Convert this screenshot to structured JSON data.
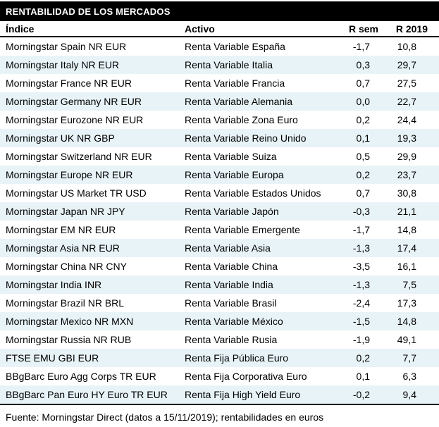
{
  "table": {
    "title": "RENTABILIDAD DE LOS MERCADOS",
    "columns": [
      "Índice",
      "Activo",
      "R sem",
      "R 2019"
    ],
    "rows": [
      {
        "indice": "Morningstar Spain NR EUR",
        "activo": "Renta Variable España",
        "r_sem": "-1,7",
        "r_2019": "10,8"
      },
      {
        "indice": "Morningstar Italy NR EUR",
        "activo": "Renta Variable Italia",
        "r_sem": "0,3",
        "r_2019": "29,7"
      },
      {
        "indice": "Morningstar France NR EUR",
        "activo": "Renta Variable Francia",
        "r_sem": "0,7",
        "r_2019": "27,5"
      },
      {
        "indice": "Morningstar Germany NR EUR",
        "activo": "Renta Variable Alemania",
        "r_sem": "0,0",
        "r_2019": "22,7"
      },
      {
        "indice": "Morningstar Eurozone NR EUR",
        "activo": "Renta Variable Zona Euro",
        "r_sem": "0,2",
        "r_2019": "24,4"
      },
      {
        "indice": "Morningstar UK NR GBP",
        "activo": "Renta Variable Reino Unido",
        "r_sem": "0,1",
        "r_2019": "19,3"
      },
      {
        "indice": "Morningstar Switzerland NR EUR",
        "activo": "Renta Variable Suiza",
        "r_sem": "0,5",
        "r_2019": "29,9"
      },
      {
        "indice": "Morningstar Europe NR EUR",
        "activo": "Renta Variable Europa",
        "r_sem": "0,2",
        "r_2019": "23,7"
      },
      {
        "indice": "Morningstar US Market TR USD",
        "activo": "Renta Variable Estados Unidos",
        "r_sem": "0,7",
        "r_2019": "30,8"
      },
      {
        "indice": "Morningstar Japan NR JPY",
        "activo": "Renta Variable Japón",
        "r_sem": "-0,3",
        "r_2019": "21,1"
      },
      {
        "indice": "Morningstar EM NR EUR",
        "activo": "Renta Variable Emergente",
        "r_sem": "-1,7",
        "r_2019": "14,8"
      },
      {
        "indice": "Morningstar Asia NR EUR",
        "activo": "Renta Variable Asia",
        "r_sem": "-1,3",
        "r_2019": "17,4"
      },
      {
        "indice": "Morningstar China NR CNY",
        "activo": "Renta Variable China",
        "r_sem": "-3,5",
        "r_2019": "16,1"
      },
      {
        "indice": "Morningstar India INR",
        "activo": "Renta Variable India",
        "r_sem": "-1,3",
        "r_2019": "7,5"
      },
      {
        "indice": "Morningstar Brazil NR BRL",
        "activo": "Renta Variable Brasil",
        "r_sem": "-2,4",
        "r_2019": "17,3"
      },
      {
        "indice": "Morningstar Mexico NR MXN",
        "activo": "Renta Variable México",
        "r_sem": "-1,5",
        "r_2019": "14,8"
      },
      {
        "indice": "Morningstar Russia NR RUB",
        "activo": "Renta Variable Rusia",
        "r_sem": "-1,9",
        "r_2019": "49,1"
      },
      {
        "indice": "FTSE EMU GBI EUR",
        "activo": "Renta Fija Pública Euro",
        "r_sem": "0,2",
        "r_2019": "7,7"
      },
      {
        "indice": "BBgBarc Euro Agg Corps TR EUR",
        "activo": "Renta Fija Corporativa Euro",
        "r_sem": "0,1",
        "r_2019": "6,3"
      },
      {
        "indice": "BBgBarc Pan Euro HY Euro TR EUR",
        "activo": "Renta Fija High Yield Euro",
        "r_sem": "-0,2",
        "r_2019": "9,4"
      }
    ]
  },
  "footer": {
    "source": "Fuente: Morningstar Direct (datos a 15/11/2019); rentabilidades en euros"
  },
  "colors": {
    "title_bg": "#000000",
    "title_text": "#ffffff",
    "stripe": "#e8f3f8",
    "text": "#000000",
    "rule": "#000000"
  },
  "chart_data": {
    "type": "table",
    "title": "RENTABILIDAD DE LOS MERCADOS",
    "columns": [
      "Índice",
      "Activo",
      "R sem",
      "R 2019"
    ],
    "rows": [
      [
        "Morningstar Spain NR EUR",
        "Renta Variable España",
        -1.7,
        10.8
      ],
      [
        "Morningstar Italy NR EUR",
        "Renta Variable Italia",
        0.3,
        29.7
      ],
      [
        "Morningstar France NR EUR",
        "Renta Variable Francia",
        0.7,
        27.5
      ],
      [
        "Morningstar Germany NR EUR",
        "Renta Variable Alemania",
        0.0,
        22.7
      ],
      [
        "Morningstar Eurozone NR EUR",
        "Renta Variable Zona Euro",
        0.2,
        24.4
      ],
      [
        "Morningstar UK NR GBP",
        "Renta Variable Reino Unido",
        0.1,
        19.3
      ],
      [
        "Morningstar Switzerland NR EUR",
        "Renta Variable Suiza",
        0.5,
        29.9
      ],
      [
        "Morningstar Europe NR EUR",
        "Renta Variable Europa",
        0.2,
        23.7
      ],
      [
        "Morningstar US Market TR USD",
        "Renta Variable Estados Unidos",
        0.7,
        30.8
      ],
      [
        "Morningstar Japan NR JPY",
        "Renta Variable Japón",
        -0.3,
        21.1
      ],
      [
        "Morningstar EM NR EUR",
        "Renta Variable Emergente",
        -1.7,
        14.8
      ],
      [
        "Morningstar Asia NR EUR",
        "Renta Variable Asia",
        -1.3,
        17.4
      ],
      [
        "Morningstar China NR CNY",
        "Renta Variable China",
        -3.5,
        16.1
      ],
      [
        "Morningstar India INR",
        "Renta Variable India",
        -1.3,
        7.5
      ],
      [
        "Morningstar Brazil NR BRL",
        "Renta Variable Brasil",
        -2.4,
        17.3
      ],
      [
        "Morningstar Mexico NR MXN",
        "Renta Variable México",
        -1.5,
        14.8
      ],
      [
        "Morningstar Russia NR RUB",
        "Renta Variable Rusia",
        -1.9,
        49.1
      ],
      [
        "FTSE EMU GBI EUR",
        "Renta Fija Pública Euro",
        0.2,
        7.7
      ],
      [
        "BBgBarc Euro Agg Corps TR EUR",
        "Renta Fija Corporativa Euro",
        0.1,
        6.3
      ],
      [
        "BBgBarc Pan Euro HY Euro TR EUR",
        "Renta Fija High Yield Euro",
        -0.2,
        9.4
      ]
    ],
    "note": "Fuente: Morningstar Direct (datos a 15/11/2019); rentabilidades en euros",
    "number_format": "decimal comma, returns in percent",
    "layout": "striped rows, black title bar, bold header with heavy rule above and below body"
  }
}
